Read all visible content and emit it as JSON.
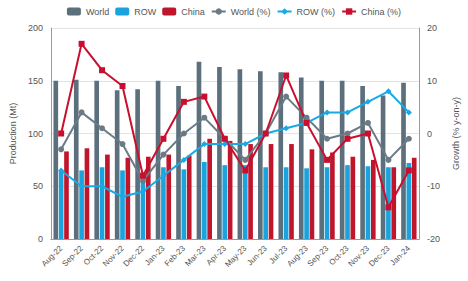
{
  "chart_data": {
    "type": "bar",
    "y_label": "Production (Mt)",
    "y2_label": "Growth (% y-on-y)",
    "categories": [
      "Aug-22",
      "Sep-22",
      "Oct-22",
      "Nov-22",
      "Dec-22",
      "Jan-23",
      "Feb-23",
      "Mar-23",
      "Apr-23",
      "May-23",
      "Jun-23",
      "Jul-23",
      "Aug-23",
      "Sep-23",
      "Oct-23",
      "Nov-23",
      "Dec-23",
      "Jan-24"
    ],
    "ylim": [
      0,
      200
    ],
    "yticks": [
      0,
      50,
      100,
      150,
      200
    ],
    "y2lim": [
      -20,
      20
    ],
    "y2ticks": [
      -20,
      -10,
      0,
      10,
      20
    ],
    "grid": true,
    "legend": "top",
    "series": [
      {
        "name": "World",
        "type": "bar",
        "color": "#5b6f7c",
        "values": [
          150,
          151,
          150,
          141,
          142,
          150,
          145,
          168,
          163,
          161,
          159,
          158,
          153,
          150,
          150,
          145,
          136,
          148
        ]
      },
      {
        "name": "ROW",
        "type": "bar",
        "color": "#1aa3dc",
        "values": [
          65,
          65,
          68,
          65,
          63,
          68,
          66,
          73,
          70,
          70,
          68,
          68,
          67,
          68,
          70,
          69,
          68,
          72
        ]
      },
      {
        "name": "China",
        "type": "bar",
        "color": "#c0162c",
        "values": [
          83,
          86,
          80,
          77,
          78,
          80,
          79,
          95,
          93,
          90,
          90,
          90,
          85,
          82,
          78,
          75,
          68,
          77
        ]
      },
      {
        "name": "World (%)",
        "type": "line",
        "axis": "y2",
        "color": "#6b7b86",
        "marker": "circle",
        "line_style": "solid",
        "values": [
          -3,
          4,
          1,
          -2,
          -9,
          -4,
          0,
          3,
          -1,
          -5,
          0,
          7,
          3,
          -1,
          0,
          2,
          -5,
          -1
        ]
      },
      {
        "name": "ROW (%)",
        "type": "line",
        "axis": "y2",
        "color": "#19a9e5",
        "marker": "diamond",
        "line_style": "solid",
        "values": [
          -7,
          -10,
          -10,
          -12,
          -11,
          -8,
          -5,
          -2,
          -2,
          -2,
          0,
          1,
          2,
          4,
          4,
          6,
          8,
          4
        ]
      },
      {
        "name": "China (%)",
        "type": "line",
        "axis": "y2",
        "color": "#c8102e",
        "marker": "square",
        "line_style": "solid",
        "values": [
          0,
          17,
          12,
          9,
          -8,
          -1,
          6,
          7,
          -1,
          -7,
          0,
          11,
          2,
          -5,
          -1,
          0,
          -14,
          -7
        ]
      }
    ]
  }
}
